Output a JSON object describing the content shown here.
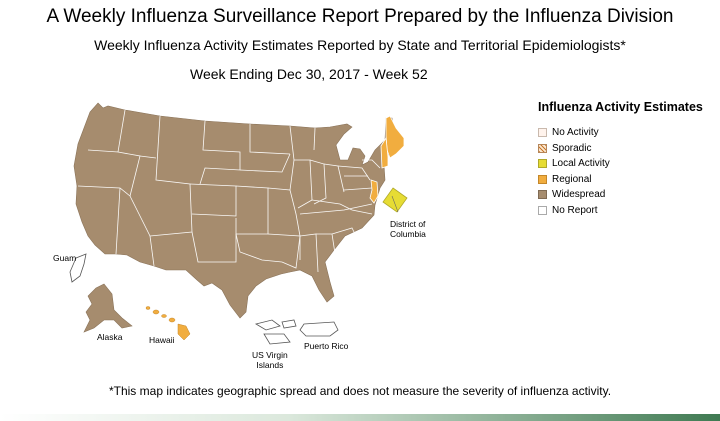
{
  "header": {
    "title": "A Weekly Influenza Surveillance Report Prepared by the Influenza Division",
    "subtitle": "Weekly Influenza Activity Estimates Reported by State and Territorial Epidemiologists*",
    "week": "Week Ending Dec 30, 2017 - Week 52"
  },
  "legend": {
    "title": "Influenza Activity Estimates",
    "items": [
      {
        "label": "No Activity",
        "color": "#fff3ec"
      },
      {
        "label": "Sporadic",
        "color": "#c8772a"
      },
      {
        "label": "Local Activity",
        "color": "#e6dc34"
      },
      {
        "label": "Regional",
        "color": "#f1ad3f"
      },
      {
        "label": "Widespread",
        "color": "#a68c6e"
      },
      {
        "label": "No Report",
        "color": "#ffffff"
      }
    ]
  },
  "regions": {
    "widespread_states": "Continental US (most states), Alaska",
    "regional": [
      "Maine",
      "New Hampshire",
      "New Jersey",
      "Hawaii"
    ],
    "local": [
      "District of Columbia"
    ],
    "no_report": [
      "Guam",
      "US Virgin Islands",
      "Puerto Rico"
    ]
  },
  "labels": {
    "dc_line1": "District of",
    "dc_line2": "Columbia",
    "guam": "Guam",
    "alaska": "Alaska",
    "hawaii": "Hawaii",
    "usvi_line1": "US Virgin",
    "usvi_line2": "Islands",
    "puerto_rico": "Puerto Rico"
  },
  "footnote": "*This map indicates geographic spread and does not measure the severity of influenza activity.",
  "colors": {
    "widespread": "#a68c6e",
    "regional": "#f1ad3f",
    "local": "#e6dc34",
    "border": "#ffffff"
  }
}
